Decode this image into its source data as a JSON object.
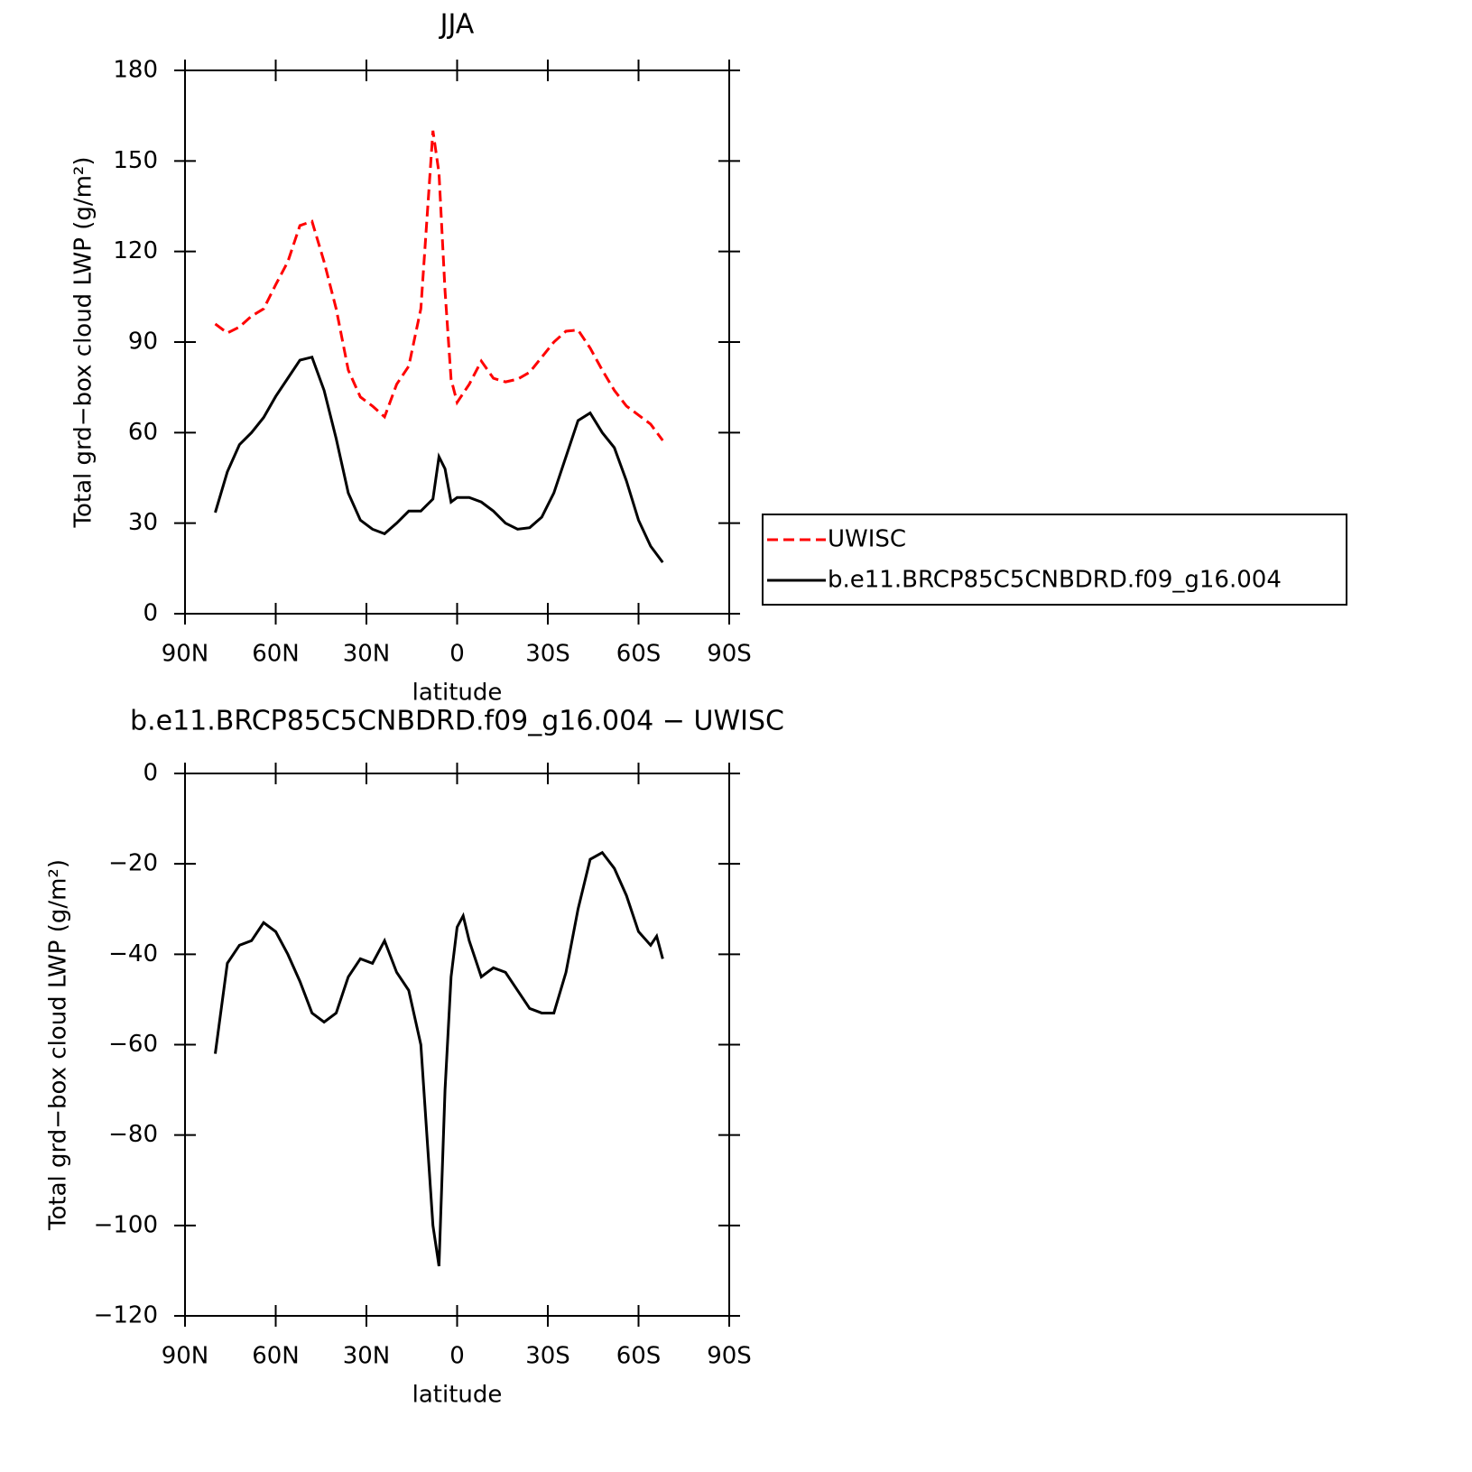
{
  "chart_data": [
    {
      "type": "line",
      "title": "JJA",
      "xlabel": "latitude",
      "ylabel": "Total grd−box cloud LWP (g/m²)",
      "x": [
        80,
        76,
        72,
        68,
        64,
        60,
        56,
        52,
        48,
        44,
        40,
        36,
        32,
        28,
        24,
        20,
        16,
        12,
        8,
        6,
        4,
        2,
        0,
        -4,
        -8,
        -12,
        -16,
        -20,
        -24,
        -28,
        -32,
        -36,
        -40,
        -44,
        -48,
        -52,
        -56,
        -60,
        -64,
        -68
      ],
      "series": [
        {
          "name": "UWISC",
          "color": "#ff0000",
          "dash": "dashed",
          "values": [
            96,
            93,
            95,
            98.6,
            101,
            109,
            116.6,
            128.6,
            130,
            116.6,
            101,
            80.7,
            71.8,
            68.8,
            65.2,
            76,
            82,
            101,
            160,
            146,
            107,
            77.7,
            70,
            76,
            83.7,
            78,
            76.8,
            77.7,
            80,
            85,
            90,
            93.6,
            94,
            88,
            80.7,
            74,
            68.8,
            65.8,
            62.8,
            57.4
          ]
        },
        {
          "name": "b.e11.BRCP85C5CNBDRD.f09_g16.004",
          "color": "#000000",
          "dash": "solid",
          "values": [
            33.5,
            47,
            56,
            60,
            65,
            72,
            78,
            84,
            85,
            74,
            58,
            40,
            31,
            28,
            26.5,
            30,
            34,
            34,
            38,
            52,
            48,
            37,
            38.5,
            38.5,
            37,
            34,
            30,
            28,
            28.5,
            32,
            40,
            52,
            64,
            66.5,
            60,
            55,
            44,
            31,
            22.4,
            17
          ]
        }
      ],
      "xlim": [
        90,
        -90
      ],
      "xticks": [
        {
          "value": 90,
          "label": "90N"
        },
        {
          "value": 60,
          "label": "60N"
        },
        {
          "value": 30,
          "label": "30N"
        },
        0,
        {
          "value": -30,
          "label": "30S"
        },
        {
          "value": -60,
          "label": "60S"
        },
        {
          "value": -90,
          "label": "90S"
        }
      ],
      "ylim": [
        0,
        180
      ],
      "yticks": [
        0,
        30,
        60,
        90,
        120,
        150,
        180
      ],
      "legend": "right"
    },
    {
      "type": "line",
      "title": "b.e11.BRCP85C5CNBDRD.f09_g16.004 − UWISC",
      "xlabel": "latitude",
      "ylabel": "Total grd−box cloud LWP (g/m²)",
      "x": [
        80,
        76,
        72,
        68,
        64,
        60,
        56,
        52,
        48,
        44,
        40,
        36,
        32,
        28,
        24,
        20,
        16,
        12,
        8,
        6,
        4,
        2,
        0,
        -2,
        -4,
        -8,
        -12,
        -16,
        -20,
        -24,
        -28,
        -32,
        -36,
        -40,
        -44,
        -48,
        -52,
        -56,
        -60,
        -64,
        -66,
        -68
      ],
      "series": [
        {
          "color": "#000000",
          "dash": "solid",
          "values": [
            -62,
            -42,
            -38,
            -37,
            -33,
            -35,
            -40,
            -46,
            -53,
            -55,
            -53,
            -45,
            -41,
            -42,
            -37,
            -44,
            -48,
            -60,
            -100,
            -109,
            -70,
            -45,
            -34,
            -31.5,
            -37,
            -45,
            -43,
            -44,
            -48,
            -52,
            -53,
            -53,
            -44,
            -30,
            -19,
            -17.5,
            -21,
            -27,
            -35,
            -38,
            -36,
            -41
          ]
        }
      ],
      "xlim": [
        90,
        -90
      ],
      "xticks": [
        {
          "value": 90,
          "label": "90N"
        },
        {
          "value": 60,
          "label": "60N"
        },
        {
          "value": 30,
          "label": "30N"
        },
        0,
        {
          "value": -30,
          "label": "30S"
        },
        {
          "value": -60,
          "label": "60S"
        },
        {
          "value": -90,
          "label": "90S"
        }
      ],
      "ylim": [
        -120,
        0
      ],
      "yticks": [
        {
          "value": -120,
          "label": "−120"
        },
        {
          "value": -100,
          "label": "−100"
        },
        {
          "value": -80,
          "label": "−80"
        },
        {
          "value": -60,
          "label": "−60"
        },
        {
          "value": -40,
          "label": "−40"
        },
        {
          "value": -20,
          "label": "−20"
        },
        0
      ]
    }
  ]
}
